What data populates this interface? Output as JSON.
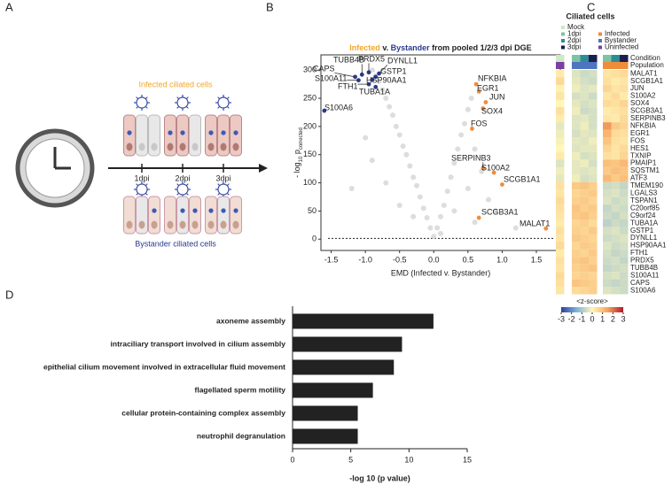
{
  "panel_labels": [
    "A",
    "B",
    "C",
    "D"
  ],
  "illustration": {
    "top_label": "Infected ciliated cells",
    "bottom_label": "Bystander ciliated cells",
    "timepoints": [
      "1dpi",
      "2dpi",
      "3dpi"
    ],
    "top_color": "#f5a623",
    "bottom_color": "#2b3a8f"
  },
  "chart_data": [
    {
      "type": "scatter",
      "title_parts": [
        {
          "text": "Infected",
          "color": "#f5a623"
        },
        {
          "text": " v. "
        },
        {
          "text": "Bystander",
          "color": "#2b3a8f"
        },
        {
          "text": " from pooled 1/2/3 dpi DGE"
        }
      ],
      "xlabel": "EMD (Infected v. Bystander)",
      "ylabel_parts": [
        {
          "text": "- log"
        },
        {
          "text": "10",
          "sub": true
        },
        {
          "text": " p"
        },
        {
          "text": "corrected",
          "sub": true
        }
      ],
      "xlim": [
        -1.65,
        1.85
      ],
      "ylim": [
        -20,
        327
      ],
      "xticks": [
        -1.5,
        {
          "value": -1,
          "label": "-1.0"
        },
        -0.5,
        {
          "value": 0,
          "label": "0.0"
        },
        0.5,
        {
          "value": 1,
          "label": "1.0"
        },
        1.5
      ],
      "yticks": [
        0,
        50,
        100,
        150,
        200,
        250,
        300
      ],
      "threshold": 1.3,
      "series": [
        {
          "color": "#d4d4d4",
          "x": [
            -0.9,
            -0.85,
            -0.8,
            -0.75,
            -0.7,
            -0.65,
            -0.6,
            -0.55,
            -0.5,
            -0.45,
            -0.4,
            -0.35,
            -0.3,
            -0.25,
            -0.2,
            -0.15,
            -0.1,
            -0.05,
            0,
            0.05,
            0.1,
            0.15,
            0.2,
            0.25,
            0.3,
            0.35,
            0.4,
            0.45,
            0.5,
            0.55,
            0.6,
            0.7,
            0.8,
            0.9,
            -1.0,
            -0.9,
            -0.7,
            0.3,
            -0.3,
            0.1,
            -0.5,
            0.6,
            1.2,
            -1.2,
            0.5
          ],
          "y": [
            300,
            290,
            280,
            265,
            250,
            235,
            220,
            200,
            185,
            165,
            150,
            130,
            110,
            95,
            75,
            55,
            38,
            20,
            5,
            20,
            40,
            60,
            85,
            110,
            135,
            160,
            185,
            205,
            230,
            250,
            160,
            120,
            70,
            50,
            180,
            140,
            100,
            50,
            40,
            10,
            60,
            30,
            20,
            90,
            90
          ]
        },
        {
          "color": "#2b3a8f",
          "labels": [
            "TUBB4B",
            "CAPS",
            "S100A11",
            "FTH1",
            "PRDX5",
            "DYNLL1",
            "GSTP1",
            "HSP90AA1",
            "TUBA1A",
            "S100A6"
          ],
          "x": [
            -1.05,
            -1.15,
            -1.1,
            -0.95,
            -0.95,
            -0.8,
            -0.85,
            -0.9,
            -0.85,
            -1.6
          ],
          "y": [
            292,
            288,
            282,
            275,
            296,
            294,
            288,
            283,
            270,
            228
          ]
        },
        {
          "color": "#f08c3a",
          "labels": [
            "NFKBIA",
            "EGR1",
            "JUN",
            "SOX4",
            "FOS",
            "SERPINB3",
            "S100A2",
            "SCGB1A1",
            "SCGB3A1",
            "MALAT1"
          ],
          "x": [
            0.62,
            0.66,
            0.76,
            0.72,
            0.56,
            0.72,
            0.88,
            1.0,
            0.66,
            1.64
          ],
          "y": [
            275,
            262,
            243,
            232,
            196,
            126,
            118,
            97,
            38,
            19
          ]
        }
      ]
    },
    {
      "type": "heatmap",
      "title": "Ciliated cells",
      "rows": [
        "MALAT1",
        "SCGB1A1",
        "JUN",
        "S100A2",
        "SOX4",
        "SCGB3A1",
        "SERPINB3",
        "NFKBIA",
        "EGR1",
        "FOS",
        "HES1",
        "TXNIP",
        "PMAIP1",
        "SQSTM1",
        "ATF3",
        "TMEM190",
        "LGALS3",
        "TSPAN1",
        "C20orf85",
        "C9orf24",
        "TUBA1A",
        "GSTP1",
        "DYNLL1",
        "HSP90AA1",
        "FTH1",
        "PRDX5",
        "TUBB4B",
        "S100A11",
        "CAPS",
        "S100A6"
      ],
      "annotations": [
        {
          "name": "Condition",
          "values": [
            "Mock",
            "1dpi",
            "2dpi",
            "3dpi",
            "1dpi",
            "2dpi",
            "3dpi"
          ]
        },
        {
          "name": "Population",
          "values": [
            "Uninfected",
            "Bystander",
            "Bystander",
            "Bystander",
            "Infected",
            "Infected",
            "Infected"
          ]
        }
      ],
      "legends": [
        {
          "entries": [
            "Mock",
            "1dpi",
            "2dpi",
            "3dpi"
          ],
          "colors": [
            "#cfe8c6",
            "#7cc4a4",
            "#2f8c96",
            "#1b1f4d"
          ]
        },
        {
          "entries": [
            "Infected",
            "Bystander",
            "Uninfected"
          ],
          "colors": [
            "#f08c3a",
            "#4f74c0",
            "#7b3fa0"
          ]
        }
      ],
      "values": [
        [
          0.2,
          -0.4,
          -0.6,
          -0.5,
          0.3,
          0.4,
          0.5
        ],
        [
          0.5,
          -0.3,
          -0.5,
          -0.6,
          0.4,
          0.2,
          0.3
        ],
        [
          0.1,
          -0.2,
          -0.4,
          -0.3,
          0.6,
          0.3,
          0.4
        ],
        [
          0.3,
          -0.5,
          -0.4,
          -0.6,
          0.3,
          0.5,
          0.2
        ],
        [
          0.0,
          -0.3,
          -0.5,
          -0.4,
          0.5,
          0.4,
          0.6
        ],
        [
          0.4,
          -0.2,
          -0.6,
          -0.5,
          0.2,
          0.3,
          0.4
        ],
        [
          0.2,
          -0.4,
          -0.3,
          -0.5,
          0.3,
          0.2,
          0.5
        ],
        [
          -0.3,
          -0.4,
          -0.2,
          -0.5,
          1.6,
          0.8,
          0.6
        ],
        [
          -0.2,
          -0.5,
          -0.3,
          -0.4,
          1.2,
          0.5,
          0.4
        ],
        [
          -0.1,
          -0.3,
          -0.4,
          -0.2,
          0.9,
          0.4,
          0.3
        ],
        [
          0.0,
          -0.4,
          -0.3,
          -0.3,
          0.6,
          0.3,
          0.5
        ],
        [
          0.2,
          -0.2,
          -0.5,
          -0.4,
          0.4,
          0.3,
          0.6
        ],
        [
          -0.4,
          -0.3,
          -0.2,
          -0.5,
          1.0,
          0.9,
          1.1
        ],
        [
          -0.2,
          -0.3,
          -0.4,
          -0.3,
          0.8,
          1.0,
          0.9
        ],
        [
          -0.3,
          -0.2,
          -0.5,
          -0.4,
          1.1,
          0.8,
          1.0
        ],
        [
          0.4,
          0.8,
          0.9,
          0.7,
          -0.6,
          -0.5,
          -0.7
        ],
        [
          0.3,
          0.6,
          0.7,
          0.8,
          -0.5,
          -0.4,
          -0.6
        ],
        [
          0.5,
          0.7,
          0.8,
          0.6,
          -0.4,
          -0.6,
          -0.5
        ],
        [
          0.4,
          0.9,
          0.7,
          0.8,
          -0.7,
          -0.5,
          -0.6
        ],
        [
          0.3,
          0.8,
          0.9,
          0.7,
          -0.6,
          -0.7,
          -0.5
        ],
        [
          0.2,
          0.6,
          0.7,
          0.5,
          -0.8,
          -0.6,
          -0.7
        ],
        [
          0.4,
          0.7,
          0.6,
          0.8,
          -0.5,
          -0.4,
          -0.6
        ],
        [
          0.3,
          0.8,
          0.7,
          0.6,
          -0.6,
          -0.5,
          -0.4
        ],
        [
          0.5,
          0.6,
          0.8,
          0.7,
          -0.4,
          -0.6,
          -0.5
        ],
        [
          0.2,
          0.7,
          0.6,
          0.8,
          -0.5,
          -0.7,
          -0.6
        ],
        [
          0.4,
          0.8,
          0.9,
          0.7,
          -0.6,
          -0.5,
          -0.7
        ],
        [
          0.3,
          0.7,
          0.8,
          0.9,
          -0.7,
          -0.6,
          -0.5
        ],
        [
          0.5,
          0.6,
          0.7,
          0.6,
          -0.5,
          -0.4,
          -0.6
        ],
        [
          0.4,
          0.9,
          0.8,
          0.7,
          -0.6,
          -0.7,
          -0.6
        ],
        [
          0.3,
          0.5,
          0.6,
          0.7,
          -0.4,
          -0.5,
          -0.6
        ]
      ],
      "zlim": [
        -3,
        3
      ],
      "zticks": [
        -3,
        -2,
        -1,
        0,
        1,
        2,
        3
      ],
      "zlabel": "<z-score>",
      "colormap": [
        "#2c3f9e",
        "#7fb2d9",
        "#fff6b8",
        "#f7a35c",
        "#b2182b"
      ]
    },
    {
      "type": "barh",
      "categories": [
        "axoneme assembly",
        "intraciliary transport involved in cilium assembly",
        "epithelial cilium movement involved in extracellular fluid movement",
        "flagellated sperm motility",
        "cellular protein-containing complex assembly",
        "neutrophil degranulation"
      ],
      "values": [
        12.1,
        9.4,
        8.7,
        6.9,
        5.6,
        5.6
      ],
      "color": "#222222",
      "xlim": [
        0,
        15
      ],
      "xticks": [
        0,
        5,
        10,
        15
      ],
      "xlabel": "-log 10 (p value)"
    }
  ]
}
